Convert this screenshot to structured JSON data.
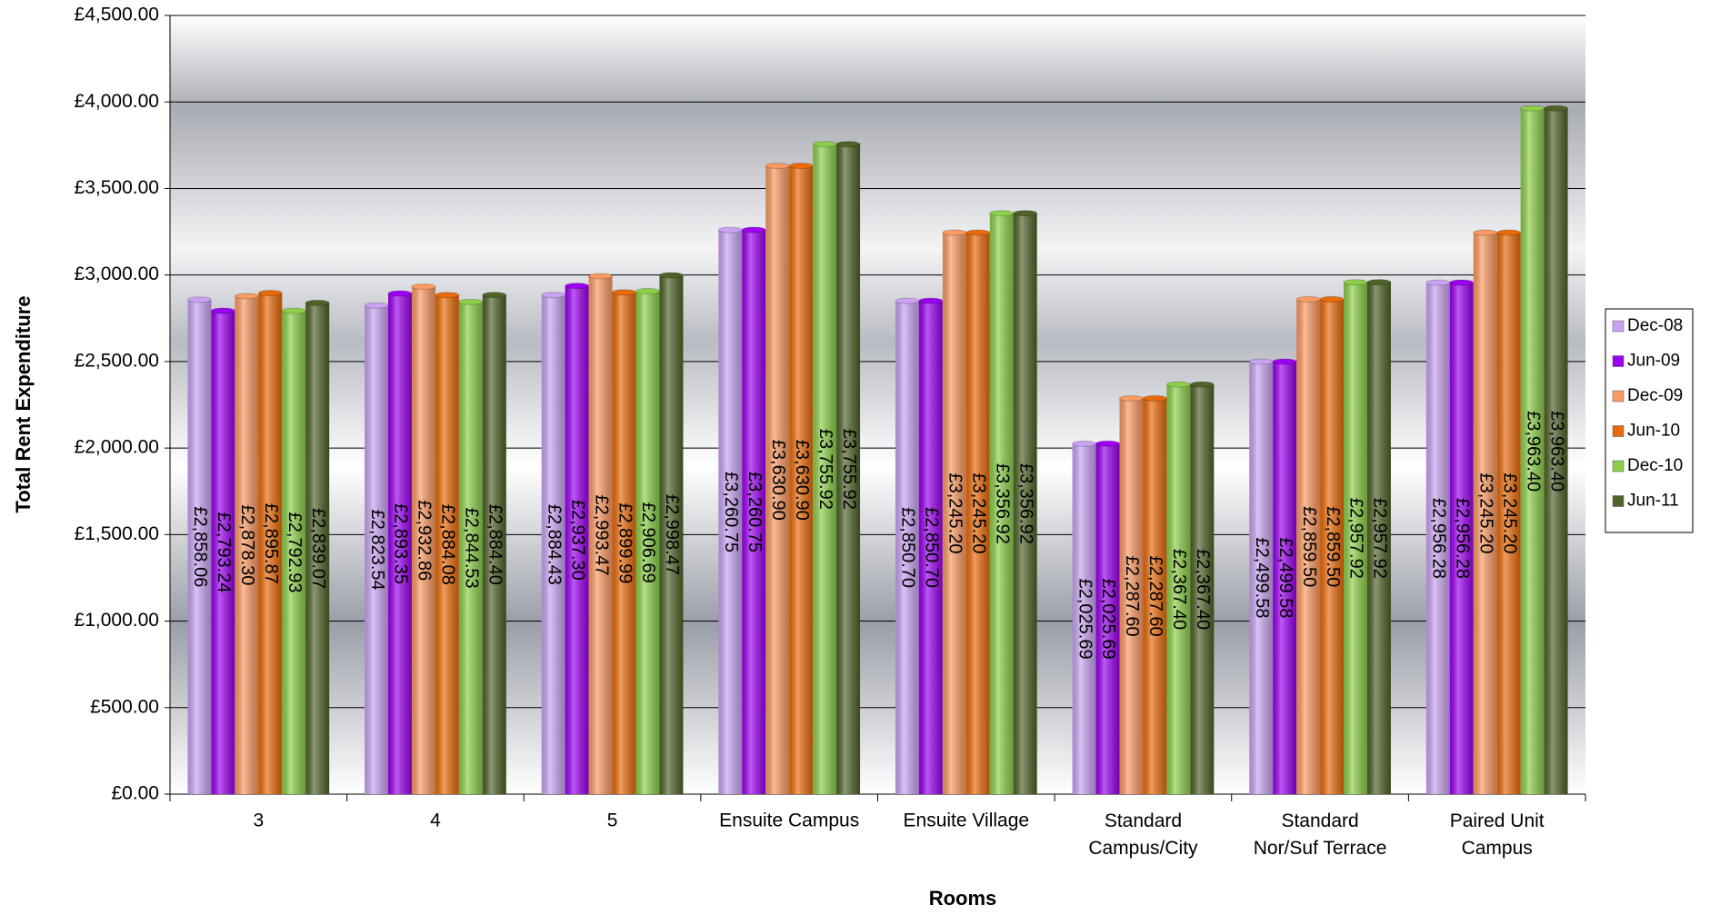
{
  "chart_data": {
    "type": "bar",
    "x_label": "Rooms",
    "y_label": "Total Rent Expenditure",
    "categories": [
      "3",
      "4",
      "5",
      "Ensuite Campus",
      "Ensuite Village",
      "Standard\nCampus/City",
      "Standard\nNor/Suf Terrace",
      "Paired Unit\nCampus"
    ],
    "series": [
      {
        "name": "Dec-08",
        "color": "#c9a3f2",
        "values": [
          2858.06,
          2823.54,
          2884.43,
          3260.75,
          2850.7,
          2025.69,
          2499.58,
          2956.28
        ],
        "value_labels": [
          "£2,858.06",
          "£2,823.54",
          "£2,884.43",
          "£3,260.75",
          "£2,850.70",
          "£2,025.69",
          "£2,499.58",
          "£2,956.28"
        ]
      },
      {
        "name": "Jun-09",
        "color": "#9b00f0",
        "values": [
          2793.24,
          2893.35,
          2937.3,
          3260.75,
          2850.7,
          2025.69,
          2499.58,
          2956.28
        ],
        "value_labels": [
          "£2,793.24",
          "£2,893.35",
          "£2,937.30",
          "£3,260.75",
          "£2,850.70",
          "£2,025.69",
          "£2,499.58",
          "£2,956.28"
        ]
      },
      {
        "name": "Dec-09",
        "color": "#fb9a62",
        "values": [
          2878.3,
          2932.86,
          2993.47,
          3630.9,
          3245.2,
          2287.6,
          2859.5,
          3245.2
        ],
        "value_labels": [
          "£2,878.30",
          "£2,932.86",
          "£2,993.47",
          "£3,630.90",
          "£3,245.20",
          "£2,287.60",
          "£2,859.50",
          "£3,245.20"
        ]
      },
      {
        "name": "Jun-10",
        "color": "#ea6a0a",
        "values": [
          2895.87,
          2884.08,
          2899.99,
          3630.9,
          3245.2,
          2287.6,
          2859.5,
          3245.2
        ],
        "value_labels": [
          "£2,895.87",
          "£2,884.08",
          "£2,899.99",
          "£3,630.90",
          "£3,245.20",
          "£2,287.60",
          "£2,859.50",
          "£3,245.20"
        ]
      },
      {
        "name": "Dec-10",
        "color": "#8ccf4a",
        "values": [
          2792.93,
          2844.53,
          2906.69,
          3755.92,
          3356.92,
          2367.4,
          2957.92,
          3963.4
        ],
        "value_labels": [
          "£2,792.93",
          "£2,844.53",
          "£2,906.69",
          "£3,755.92",
          "£3,356.92",
          "£2,367.40",
          "£2,957.92",
          "£3,963.40"
        ]
      },
      {
        "name": "Jun-11",
        "color": "#4f6228",
        "values": [
          2839.07,
          2884.4,
          2998.47,
          3755.92,
          3356.92,
          2367.4,
          2957.92,
          3963.4
        ],
        "value_labels": [
          "£2,839.07",
          "£2,884.40",
          "£2,998.47",
          "£3,755.92",
          "£3,356.92",
          "£2,367.40",
          "£2,957.92",
          "£3,963.40"
        ]
      }
    ],
    "ylim": [
      0,
      4500
    ],
    "yticks": [
      {
        "value": 0,
        "label": "£0.00"
      },
      {
        "value": 500,
        "label": "£500.00"
      },
      {
        "value": 1000,
        "label": "£1,000.00"
      },
      {
        "value": 1500,
        "label": "£1,500.00"
      },
      {
        "value": 2000,
        "label": "£2,000.00"
      },
      {
        "value": 2500,
        "label": "£2,500.00"
      },
      {
        "value": 3000,
        "label": "£3,000.00"
      },
      {
        "value": 3500,
        "label": "£3,500.00"
      },
      {
        "value": 4000,
        "label": "£4,000.00"
      },
      {
        "value": 4500,
        "label": "£4,500.00"
      }
    ],
    "grid": true,
    "legend": "right"
  }
}
